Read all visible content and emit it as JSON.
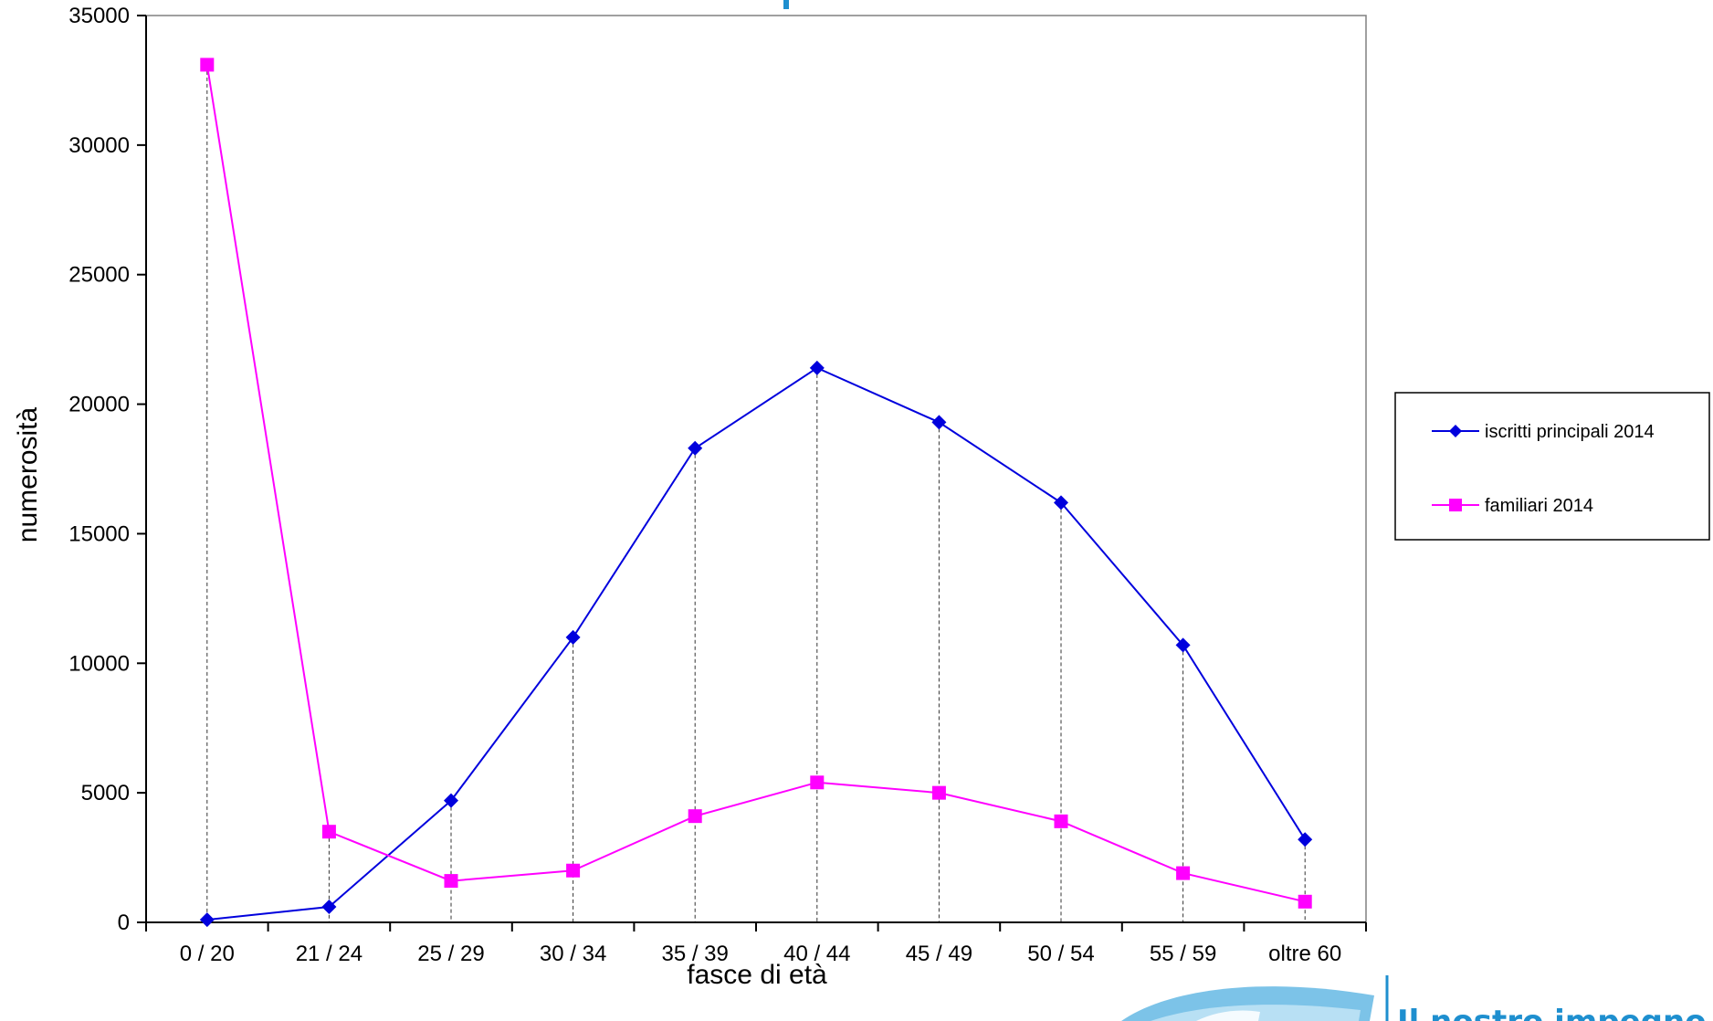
{
  "chart_data": {
    "type": "line",
    "title": "",
    "xlabel": "fasce di età",
    "ylabel": "numerosità",
    "categories": [
      "0 / 20",
      "21 / 24",
      "25 / 29",
      "30 / 34",
      "35 / 39",
      "40 / 44",
      "45 / 49",
      "50 / 54",
      "55 / 59",
      "oltre 60"
    ],
    "ylim": [
      0,
      35000
    ],
    "yticks": [
      0,
      5000,
      10000,
      15000,
      20000,
      25000,
      30000,
      35000
    ],
    "ytick_labels": [
      "0",
      "5000",
      "10000",
      "15000",
      "20000",
      "25000",
      "30000",
      "35000"
    ],
    "grid": false,
    "drop_lines": true,
    "legend_position": "right",
    "series": [
      {
        "name": "iscritti principali 2014",
        "color": "#0000dd",
        "marker": "diamond",
        "values": [
          100,
          600,
          4700,
          11000,
          18300,
          21400,
          19300,
          16200,
          10700,
          3200
        ]
      },
      {
        "name": "familiari 2014",
        "color": "#ff00ff",
        "marker": "square",
        "values": [
          33100,
          3500,
          1600,
          2000,
          4100,
          5400,
          5000,
          3900,
          1900,
          800
        ]
      }
    ]
  },
  "branding": {
    "tagline": "Il nostro impegno",
    "logo_color": "#1e8fcf"
  }
}
